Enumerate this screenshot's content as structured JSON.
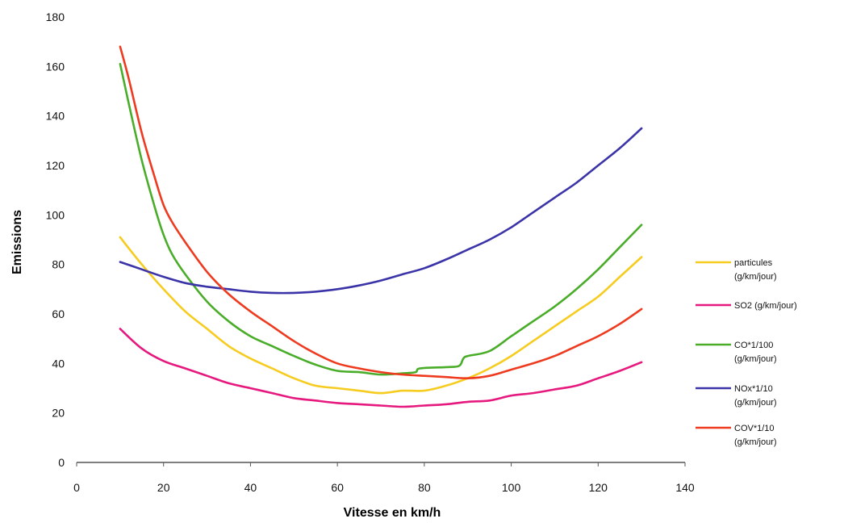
{
  "chart_data": {
    "type": "line",
    "title": "",
    "xlabel": "Vitesse  en km/h",
    "ylabel": "Emissions",
    "xlim": [
      0,
      140
    ],
    "ylim": [
      0,
      180
    ],
    "x_ticks": [
      0,
      20,
      40,
      60,
      80,
      100,
      120,
      140
    ],
    "y_ticks": [
      0,
      20,
      40,
      60,
      80,
      100,
      120,
      140,
      160,
      180
    ],
    "grid": false,
    "legend_position": "right",
    "series": [
      {
        "name": "particules (g/km/jour)",
        "legend_lines": [
          "particules",
          "(g/km/jour)"
        ],
        "color": "#f5cc1f",
        "x": [
          10,
          15,
          20,
          25,
          30,
          35,
          40,
          45,
          50,
          55,
          60,
          65,
          70,
          75,
          80,
          85,
          90,
          95,
          100,
          105,
          110,
          115,
          120,
          125,
          130
        ],
        "y": [
          91,
          80,
          70,
          61,
          54,
          47,
          42,
          38,
          34,
          31,
          30,
          29,
          28,
          29,
          29,
          31,
          34,
          38,
          43,
          49,
          55,
          61,
          67,
          75,
          83
        ]
      },
      {
        "name": "SO2 (g/km/jour)",
        "legend_lines": [
          "SO2 (g/km/jour)"
        ],
        "color": "#e6197e",
        "x": [
          10,
          15,
          20,
          25,
          30,
          35,
          40,
          45,
          50,
          55,
          60,
          65,
          70,
          75,
          80,
          85,
          90,
          95,
          100,
          105,
          110,
          115,
          120,
          125,
          130
        ],
        "y": [
          54,
          46,
          41,
          38,
          35,
          32,
          30,
          28,
          26,
          25,
          24,
          23.5,
          23,
          22.5,
          23,
          23.5,
          24.5,
          25,
          27,
          28,
          29.5,
          31,
          34,
          37,
          40.5
        ]
      },
      {
        "name": "CO*1/100 (g/km/jour)",
        "legend_lines": [
          "CO*1/100",
          "(g/km/jour)"
        ],
        "color": "#4aad2a",
        "x": [
          10,
          12,
          15,
          18,
          20,
          22,
          25,
          30,
          35,
          40,
          45,
          50,
          55,
          60,
          65,
          70,
          75,
          78,
          79,
          85,
          88,
          89,
          90,
          95,
          100,
          105,
          110,
          115,
          120,
          125,
          130
        ],
        "y": [
          161,
          145,
          122,
          103,
          92,
          84,
          76,
          65,
          57,
          51,
          47,
          43,
          39.5,
          37,
          36.5,
          35.5,
          36,
          36.5,
          38,
          38.5,
          39,
          42,
          43,
          45,
          51,
          57,
          63,
          70,
          78,
          87,
          96
        ]
      },
      {
        "name": "NOx*1/10 (g/km/jour)",
        "legend_lines": [
          "NOx*1/10",
          "(g/km/jour)"
        ],
        "color": "#3b34a8",
        "x": [
          10,
          15,
          20,
          25,
          30,
          35,
          40,
          45,
          50,
          55,
          60,
          65,
          70,
          75,
          80,
          85,
          90,
          95,
          100,
          105,
          110,
          115,
          120,
          125,
          130
        ],
        "y": [
          81,
          78,
          75,
          72.5,
          71,
          70,
          69,
          68.5,
          68.5,
          69,
          70,
          71.5,
          73.5,
          76,
          78.5,
          82,
          86,
          90,
          95,
          101,
          107,
          113,
          120,
          127,
          135
        ]
      },
      {
        "name": "COV*1/10 (g/km/jour)",
        "legend_lines": [
          "COV*1/10",
          "(g/km/jour)"
        ],
        "color": "#ee3a1f",
        "x": [
          10,
          12,
          15,
          18,
          20,
          22,
          25,
          30,
          35,
          40,
          45,
          50,
          55,
          60,
          65,
          70,
          75,
          80,
          85,
          90,
          95,
          100,
          105,
          110,
          115,
          120,
          125,
          130
        ],
        "y": [
          168,
          155,
          133,
          115,
          104,
          97,
          89,
          77,
          68,
          61,
          55,
          49,
          44,
          40,
          38,
          36.5,
          35.5,
          35,
          34.5,
          34,
          35,
          37.5,
          40,
          43,
          47,
          51,
          56,
          62
        ]
      }
    ]
  }
}
